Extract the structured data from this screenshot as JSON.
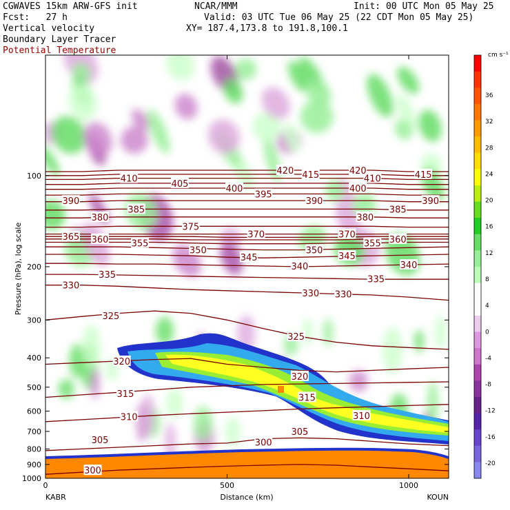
{
  "header": {
    "model": "CGWAVES 15km ARW-GFS init",
    "forecast": "Fcst:   27 h",
    "field1": "Vertical velocity",
    "field2": "Boundary Layer Tracer",
    "field3": "Potential Temperature",
    "org": "NCAR/MMM",
    "init": "Init: 00 UTC Mon 05 May 25",
    "valid": "Valid: 03 UTC Tue 06 May 25 (22 CDT Mon 05 May 25)",
    "xy": "XY= 187.4,173.8 to 191.8,100.1",
    "field3_color": "#a00000"
  },
  "chart_data": {
    "type": "heatmap",
    "xlabel": "Distance (km)",
    "ylabel": "Pressure (hPa), log scale",
    "xlim": [
      0,
      1110
    ],
    "ylim": [
      1000,
      40
    ],
    "x_ticks": [
      0,
      500,
      1000
    ],
    "y_ticks": [
      100,
      200,
      300,
      400,
      500,
      600,
      700,
      800,
      900,
      1000
    ],
    "y_scale": "log",
    "endpoints": {
      "left": "KABR",
      "right": "KOUN"
    },
    "colorbar": {
      "unit": "cm s⁻¹",
      "labels": [
        36,
        32,
        28,
        24,
        20,
        16,
        12,
        8,
        4,
        0,
        -4,
        -8,
        -12,
        -16,
        -20
      ],
      "colors": [
        "#ff0000",
        "#ff3300",
        "#ff5500",
        "#ff7700",
        "#ff9900",
        "#ffbb00",
        "#ffdd00",
        "#ffff00",
        "#bbee11",
        "#66dd22",
        "#22cc22",
        "#66dd66",
        "#99ee99",
        "#bbffbb",
        "#ffffff",
        "#ffffff",
        "#eeccee",
        "#dd99dd",
        "#cc77cc",
        "#aa44aa",
        "#883399",
        "#662288",
        "#5522aa",
        "#6644cc",
        "#7766dd",
        "#8888ee"
      ]
    },
    "theta_contours": [
      {
        "value": 300,
        "p": [
          970,
          955,
          940,
          930,
          920,
          912,
          905,
          900,
          905,
          918,
          930,
          945
        ]
      },
      {
        "value": 305,
        "p": [
          810,
          800,
          790,
          780,
          770,
          765,
          740,
          735,
          740,
          755,
          770,
          780
        ]
      },
      {
        "value": 310,
        "p": [
          650,
          640,
          630,
          620,
          612,
          605,
          598,
          590,
          585,
          580,
          575,
          570
        ]
      },
      {
        "value": 315,
        "p": [
          540,
          530,
          520,
          510,
          500,
          495,
          490,
          488,
          486,
          484,
          482,
          480
        ]
      },
      {
        "value": 320,
        "p": [
          420,
          415,
          410,
          405,
          402,
          420,
          430,
          440,
          445,
          440,
          435,
          430
        ]
      },
      {
        "value": 325,
        "p": [
          300,
          292,
          285,
          280,
          285,
          300,
          320,
          340,
          355,
          365,
          370,
          375
        ]
      },
      {
        "value": 330,
        "p": [
          230,
          230,
          232,
          235,
          238,
          240,
          242,
          244,
          246,
          248,
          252,
          258
        ]
      },
      {
        "value": 335,
        "p": [
          212,
          212,
          213,
          214,
          215,
          216,
          217,
          218,
          219,
          220,
          220,
          220
        ]
      },
      {
        "value": 340,
        "p": [
          195,
          195,
          196,
          196,
          197,
          198,
          199,
          200,
          199,
          198,
          197,
          196
        ]
      },
      {
        "value": 345,
        "p": [
          182,
          182,
          182,
          183,
          184,
          186,
          187,
          186,
          185,
          184,
          183,
          182
        ]
      },
      {
        "value": 350,
        "p": [
          172,
          172,
          172,
          173,
          174,
          175,
          176,
          176,
          175,
          174,
          173,
          172
        ]
      },
      {
        "value": 355,
        "p": [
          166,
          166,
          166,
          166,
          167,
          168,
          168,
          168,
          167,
          167,
          166,
          166
        ]
      },
      {
        "value": 360,
        "p": [
          162,
          162,
          162,
          162,
          163,
          163,
          163,
          163,
          163,
          162,
          162,
          162
        ]
      },
      {
        "value": 365,
        "p": [
          159,
          159,
          159,
          159,
          159,
          160,
          160,
          160,
          160,
          159,
          159,
          159
        ]
      },
      {
        "value": 370,
        "p": [
          156,
          156,
          156,
          156,
          156,
          156,
          156,
          156,
          156,
          156,
          156,
          156
        ]
      },
      {
        "value": 375,
        "p": [
          148,
          148,
          147,
          147,
          147,
          147,
          147,
          147,
          147,
          147,
          148,
          148
        ]
      },
      {
        "value": 380,
        "p": [
          138,
          138,
          137,
          137,
          137,
          137,
          137,
          137,
          137,
          137,
          138,
          138
        ]
      },
      {
        "value": 385,
        "p": [
          130,
          130,
          129,
          129,
          129,
          129,
          129,
          129,
          129,
          129,
          130,
          130
        ]
      },
      {
        "value": 390,
        "p": [
          122,
          122,
          121,
          121,
          121,
          121,
          121,
          121,
          121,
          121,
          122,
          122
        ]
      },
      {
        "value": 395,
        "p": [
          116,
          116,
          115,
          115,
          115,
          115,
          115,
          115,
          115,
          115,
          116,
          116
        ]
      },
      {
        "value": 400,
        "p": [
          111,
          111,
          110,
          110,
          110,
          110,
          110,
          110,
          110,
          110,
          111,
          111
        ]
      },
      {
        "value": 405,
        "p": [
          107,
          107,
          106,
          106,
          106,
          106,
          106,
          106,
          106,
          106,
          107,
          107
        ]
      },
      {
        "value": 410,
        "p": [
          103,
          103,
          102,
          102,
          102,
          102,
          102,
          102,
          102,
          102,
          103,
          103
        ]
      },
      {
        "value": 415,
        "p": [
          100,
          100,
          99,
          99,
          99,
          99,
          99,
          99,
          99,
          99,
          100,
          100
        ]
      },
      {
        "value": 420,
        "p": [
          97,
          97,
          96,
          96,
          96,
          96,
          96,
          96,
          96,
          96,
          97,
          97
        ]
      }
    ],
    "theta_x": [
      0,
      100,
      200,
      300,
      400,
      500,
      600,
      700,
      800,
      900,
      1000,
      1110
    ],
    "theta_labels": [
      {
        "value": 300,
        "x": 130,
        "p": 940
      },
      {
        "value": 305,
        "p": 745,
        "x": 150
      },
      {
        "value": 300,
        "x": 600,
        "p": 760
      },
      {
        "value": 305,
        "x": 700,
        "p": 700
      },
      {
        "value": 310,
        "x": 230,
        "p": 625
      },
      {
        "value": 310,
        "x": 870,
        "p": 620
      },
      {
        "value": 315,
        "x": 220,
        "p": 525
      },
      {
        "value": 315,
        "x": 720,
        "p": 540
      },
      {
        "value": 320,
        "x": 210,
        "p": 410
      },
      {
        "value": 320,
        "x": 700,
        "p": 460
      },
      {
        "value": 325,
        "x": 180,
        "p": 290
      },
      {
        "value": 325,
        "x": 690,
        "p": 340
      },
      {
        "value": 330,
        "x": 70,
        "p": 230
      },
      {
        "value": 330,
        "x": 730,
        "p": 244
      },
      {
        "value": 330,
        "x": 820,
        "p": 246
      },
      {
        "value": 335,
        "x": 170,
        "p": 212
      },
      {
        "value": 335,
        "x": 910,
        "p": 219
      },
      {
        "value": 340,
        "x": 700,
        "p": 199
      },
      {
        "value": 340,
        "x": 1000,
        "p": 197
      },
      {
        "value": 345,
        "x": 560,
        "p": 186
      },
      {
        "value": 345,
        "x": 830,
        "p": 184
      },
      {
        "value": 350,
        "x": 420,
        "p": 176
      },
      {
        "value": 350,
        "x": 740,
        "p": 176
      },
      {
        "value": 355,
        "x": 260,
        "p": 167
      },
      {
        "value": 355,
        "x": 900,
        "p": 167
      },
      {
        "value": 360,
        "x": 150,
        "p": 162
      },
      {
        "value": 360,
        "x": 970,
        "p": 162
      },
      {
        "value": 365,
        "x": 70,
        "p": 159
      },
      {
        "value": 370,
        "x": 580,
        "p": 156
      },
      {
        "value": 370,
        "x": 830,
        "p": 156
      },
      {
        "value": 375,
        "x": 400,
        "p": 147
      },
      {
        "value": 380,
        "x": 150,
        "p": 137
      },
      {
        "value": 380,
        "x": 880,
        "p": 137
      },
      {
        "value": 385,
        "x": 250,
        "p": 129
      },
      {
        "value": 385,
        "x": 970,
        "p": 129
      },
      {
        "value": 390,
        "x": 70,
        "p": 121
      },
      {
        "value": 390,
        "x": 740,
        "p": 121
      },
      {
        "value": 390,
        "x": 1060,
        "p": 121
      },
      {
        "value": 395,
        "x": 600,
        "p": 115
      },
      {
        "value": 400,
        "x": 520,
        "p": 110
      },
      {
        "value": 400,
        "x": 860,
        "p": 110
      },
      {
        "value": 405,
        "x": 370,
        "p": 106
      },
      {
        "value": 410,
        "x": 230,
        "p": 102
      },
      {
        "value": 410,
        "x": 900,
        "p": 102
      },
      {
        "value": 415,
        "x": 730,
        "p": 99
      },
      {
        "value": 415,
        "x": 1040,
        "p": 99
      },
      {
        "value": 420,
        "x": 660,
        "p": 96
      },
      {
        "value": 420,
        "x": 860,
        "p": 96
      }
    ]
  }
}
